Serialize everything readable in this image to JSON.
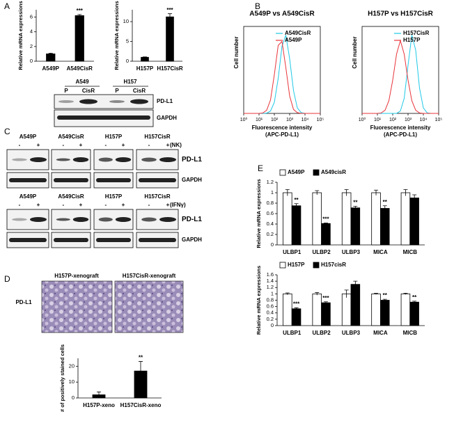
{
  "chart_data": [
    {
      "type": "bar",
      "ylabel": "Relative mRNA expressions",
      "categories": [
        "A549P",
        "A549CisR"
      ],
      "values": [
        1,
        6.2
      ],
      "errors": [
        0.1,
        0.15
      ],
      "significance": [
        null,
        "***"
      ],
      "color": "#000000",
      "ylim": [
        0,
        7
      ],
      "yticks": [
        0,
        2,
        4,
        6
      ]
    },
    {
      "type": "bar",
      "ylabel": "Relative mRNA expressions",
      "categories": [
        "H157P",
        "H157CisR"
      ],
      "values": [
        1,
        11.2
      ],
      "errors": [
        0.1,
        0.8
      ],
      "significance": [
        null,
        "***"
      ],
      "color": "#000000",
      "ylim": [
        0,
        13
      ],
      "yticks": [
        0,
        5,
        10
      ]
    },
    {
      "type": "line",
      "title": "A549P vs A549CisR",
      "ylabel": "Cell number",
      "xlabel": [
        "Fluorescence intensity",
        "(APC-PD-L1)"
      ],
      "xscale": "log",
      "legend": "upper right",
      "x": [
        1,
        1.78,
        3.16,
        5.62,
        10,
        17.8,
        31.6,
        56.2,
        100,
        178,
        316,
        562,
        1000,
        1778,
        3162,
        5623,
        10000,
        17783,
        31623,
        56234,
        100000
      ],
      "series": [
        {
          "name": "A549CisR",
          "color": "#1ec8e6",
          "values": [
            0,
            0,
            0,
            0,
            0,
            0,
            0.003,
            0.03,
            0.14,
            0.44,
            0.85,
            0.99,
            0.69,
            0.29,
            0.07,
            0.01,
            0,
            0,
            0,
            0,
            0
          ]
        },
        {
          "name": "A549P",
          "color": "#e8343a",
          "values": [
            0,
            0,
            0,
            0,
            0,
            0.005,
            0.04,
            0.17,
            0.49,
            0.86,
            0.91,
            0.58,
            0.22,
            0.05,
            0.01,
            0,
            0,
            0,
            0,
            0,
            0
          ]
        }
      ],
      "xlim": [
        1,
        100000
      ],
      "ylim": [
        0,
        1.1
      ],
      "xticks": [
        {
          "value": 1,
          "label": "10⁰"
        },
        {
          "value": 10,
          "label": "10¹"
        },
        {
          "value": 100,
          "label": "10²"
        },
        {
          "value": 1000,
          "label": "10³"
        },
        {
          "value": 10000,
          "label": "10⁴"
        },
        {
          "value": 100000,
          "label": "10⁵"
        }
      ]
    },
    {
      "type": "line",
      "title": "H157P vs H157CisR",
      "ylabel": "Cell number",
      "xlabel": [
        "Fluorescence intensity",
        "(APC-PD-L1)"
      ],
      "xscale": "log",
      "legend": "upper right",
      "x": [
        1,
        1.78,
        3.16,
        5.62,
        10,
        17.8,
        31.6,
        56.2,
        100,
        178,
        316,
        562,
        1000,
        1778,
        3162,
        5623,
        10000,
        17783,
        31623,
        56234,
        100000
      ],
      "series": [
        {
          "name": "H157CisR",
          "color": "#1ec8e6",
          "values": [
            0,
            0,
            0,
            0,
            0,
            0,
            0,
            0,
            0,
            0,
            0.03,
            0.19,
            0.61,
            0.99,
            0.8,
            0.32,
            0.07,
            0.007,
            0,
            0,
            0
          ]
        },
        {
          "name": "H157P",
          "color": "#e8343a",
          "values": [
            0,
            0,
            0,
            0,
            0,
            0.006,
            0.04,
            0.16,
            0.42,
            0.75,
            0.92,
            0.75,
            0.42,
            0.16,
            0.04,
            0.006,
            0,
            0,
            0,
            0,
            0
          ]
        }
      ],
      "xlim": [
        1,
        100000
      ],
      "ylim": [
        0,
        1.1
      ],
      "xticks": [
        {
          "value": 1,
          "label": "10⁰"
        },
        {
          "value": 10,
          "label": "10¹"
        },
        {
          "value": 100,
          "label": "10²"
        },
        {
          "value": 1000,
          "label": "10³"
        },
        {
          "value": 10000,
          "label": "10⁴"
        },
        {
          "value": 100000,
          "label": "10⁵"
        }
      ]
    },
    {
      "type": "bar",
      "ylabel": "Relative mRNA expressions",
      "legend": "upper left",
      "categories": [
        "ULBP1",
        "ULBP2",
        "ULBP3",
        "MICA",
        "MICB"
      ],
      "series": [
        {
          "name": "A549P",
          "color": "#ffffff",
          "values": [
            1,
            1,
            1,
            1,
            1
          ],
          "errors": [
            0.06,
            0.04,
            0.06,
            0.05,
            0.06
          ]
        },
        {
          "name": "A549cisR",
          "color": "#000000",
          "values": [
            0.75,
            0.41,
            0.71,
            0.7,
            0.9
          ],
          "errors": [
            0.04,
            0.01,
            0.03,
            0.05,
            0.06
          ],
          "significance": [
            "**",
            "***",
            "**",
            "**",
            null
          ]
        }
      ],
      "ylim": [
        0,
        1.2
      ],
      "yticks": [
        0,
        0.2,
        0.4,
        0.6,
        0.8,
        1,
        1.2
      ]
    },
    {
      "type": "bar",
      "ylabel": "Relative mRNA expressions",
      "legend": "upper left",
      "categories": [
        "ULBP1",
        "ULBP2",
        "ULBP3",
        "MICA",
        "MICB"
      ],
      "series": [
        {
          "name": "H157P",
          "color": "#ffffff",
          "values": [
            1,
            1,
            1,
            1,
            1
          ],
          "errors": [
            0.03,
            0.04,
            0.12,
            0.02,
            0.02
          ]
        },
        {
          "name": "H157cisR",
          "color": "#000000",
          "values": [
            0.53,
            0.72,
            1.3,
            0.8,
            0.74
          ],
          "errors": [
            0.03,
            0.03,
            0.1,
            0.03,
            0.03
          ],
          "significance": [
            "***",
            "***",
            null,
            "**",
            "**"
          ]
        }
      ],
      "ylim": [
        0,
        1.6
      ],
      "yticks": [
        0,
        0.2,
        0.4,
        0.6,
        0.8,
        1,
        1.2,
        1.4,
        1.6
      ]
    },
    {
      "type": "bar",
      "ylabel": "# of positively stained cells",
      "categories": [
        "H157P-xeno",
        "H157CisR-xeno"
      ],
      "values": [
        2,
        17
      ],
      "errors": [
        1.8,
        6
      ],
      "significance": [
        null,
        "**"
      ],
      "color": "#000000",
      "ylim": [
        0,
        25
      ],
      "yticks": [
        0,
        10,
        20
      ]
    }
  ],
  "figure": {
    "panel_labels": [
      "A",
      "B",
      "C",
      "D",
      "E"
    ],
    "blot_a": {
      "groups": [
        "A549",
        "H157"
      ],
      "lanes": [
        "P",
        "CisR",
        "P",
        "CisR"
      ],
      "rows": [
        "PD-L1",
        "GAPDH"
      ]
    },
    "blot_c": {
      "cells": [
        "A549P",
        "A549CisR",
        "H157P",
        "H157CisR"
      ],
      "signs": [
        "-",
        "+"
      ],
      "treatments": [
        "(NK)",
        "(IFNγ)"
      ],
      "rows": [
        "PD-L1",
        "GAPDH"
      ]
    },
    "panel_d": {
      "images": [
        "H157P-xenograft",
        "H157CisR-xenograft"
      ],
      "stain": "PD-L1"
    }
  }
}
